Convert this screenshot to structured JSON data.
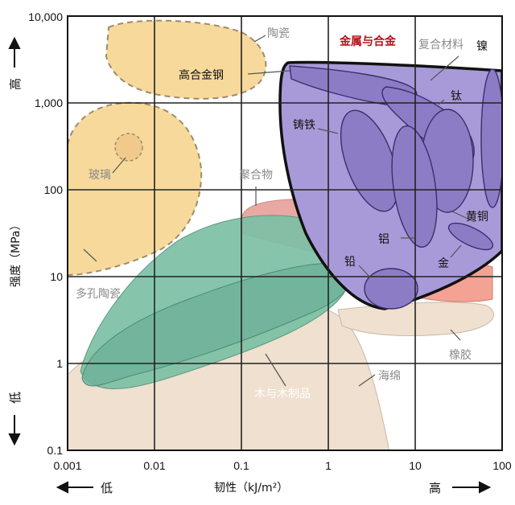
{
  "chart_data": {
    "type": "area",
    "xlabel": "韧性（kJ/m²）",
    "ylabel": "强度（MPa）",
    "xscale": "log",
    "yscale": "log",
    "xlim": [
      0.001,
      100
    ],
    "ylim": [
      0.1,
      10000
    ],
    "grid": true,
    "x_ticks": [
      "0.001",
      "0.01",
      "0.1",
      "1",
      "10",
      "100"
    ],
    "y_ticks": [
      "10,000",
      "1,000",
      "100",
      "10",
      "1",
      "0.1"
    ],
    "x_direction": {
      "low": "低",
      "high": "高"
    },
    "y_direction": {
      "low": "低",
      "high": "高"
    },
    "regions": [
      {
        "name": "陶瓷",
        "color": "#f7d99b"
      },
      {
        "name": "玻璃",
        "color": "#f7d99b"
      },
      {
        "name": "多孔陶瓷",
        "color": "#f7d99b"
      },
      {
        "name": "聚合物",
        "color": "#e8a9a2"
      },
      {
        "name": "木与木制品",
        "color": "#7cc0a5"
      },
      {
        "name": "海绵",
        "color": "#efe0cf"
      },
      {
        "name": "橡胶",
        "color": "#efe0cf"
      },
      {
        "name": "复合材料",
        "color": "#f3a293"
      },
      {
        "name": "金属与合金",
        "color": "#a89ad8"
      }
    ],
    "metals": [
      "高合金钢",
      "镍",
      "钛",
      "铸铁",
      "黄铜",
      "铝",
      "金",
      "铅"
    ]
  }
}
